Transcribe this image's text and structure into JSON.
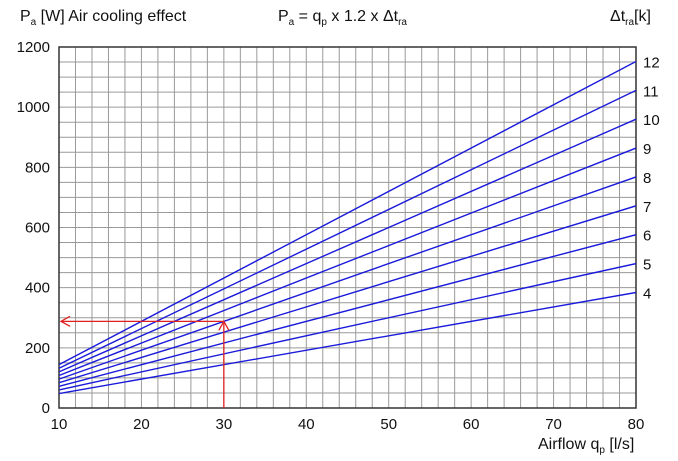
{
  "header": {
    "ylabel": {
      "p": "P",
      "sub_a": "a",
      "rest": " [W] Air cooling effect"
    },
    "formula": {
      "p": "P",
      "sub_a": "a",
      "eq": " = q",
      "sub_p": "p",
      "mid": " x 1.2 x  Δt",
      "sub_ra": "ra"
    },
    "legend_title": {
      "delta": "Δt",
      "sub_ra": "ra",
      "unit": "[k]"
    }
  },
  "xlabel": {
    "text": "Airflow q",
    "sub": "p",
    "unit": " [l/s]"
  },
  "chart_data": {
    "type": "line",
    "formula": "P = q x 1.2 x Δt",
    "x_ticks": [
      10,
      20,
      30,
      40,
      50,
      60,
      70,
      80
    ],
    "y_ticks": [
      0,
      200,
      400,
      600,
      800,
      1000,
      1200
    ],
    "xlim": [
      10,
      80
    ],
    "ylim": [
      0,
      1200
    ],
    "grid": true,
    "x_minor_step": 2,
    "y_minor_step": 50,
    "line_color": "#1a1adb",
    "series": [
      {
        "name": "4",
        "x": [
          10,
          80
        ],
        "values": [
          48,
          384
        ]
      },
      {
        "name": "5",
        "x": [
          10,
          80
        ],
        "values": [
          60,
          480
        ]
      },
      {
        "name": "6",
        "x": [
          10,
          80
        ],
        "values": [
          72,
          576
        ]
      },
      {
        "name": "7",
        "x": [
          10,
          80
        ],
        "values": [
          84,
          672
        ]
      },
      {
        "name": "8",
        "x": [
          10,
          80
        ],
        "values": [
          96,
          768
        ]
      },
      {
        "name": "9",
        "x": [
          10,
          80
        ],
        "values": [
          108,
          864
        ]
      },
      {
        "name": "10",
        "x": [
          10,
          80
        ],
        "values": [
          120,
          960
        ]
      },
      {
        "name": "11",
        "x": [
          10,
          80
        ],
        "values": [
          132,
          1056
        ]
      },
      {
        "name": "12",
        "x": [
          10,
          80
        ],
        "values": [
          144,
          1152
        ]
      }
    ],
    "annotation": {
      "x": 30,
      "y": 288,
      "color": "#e02020"
    }
  }
}
